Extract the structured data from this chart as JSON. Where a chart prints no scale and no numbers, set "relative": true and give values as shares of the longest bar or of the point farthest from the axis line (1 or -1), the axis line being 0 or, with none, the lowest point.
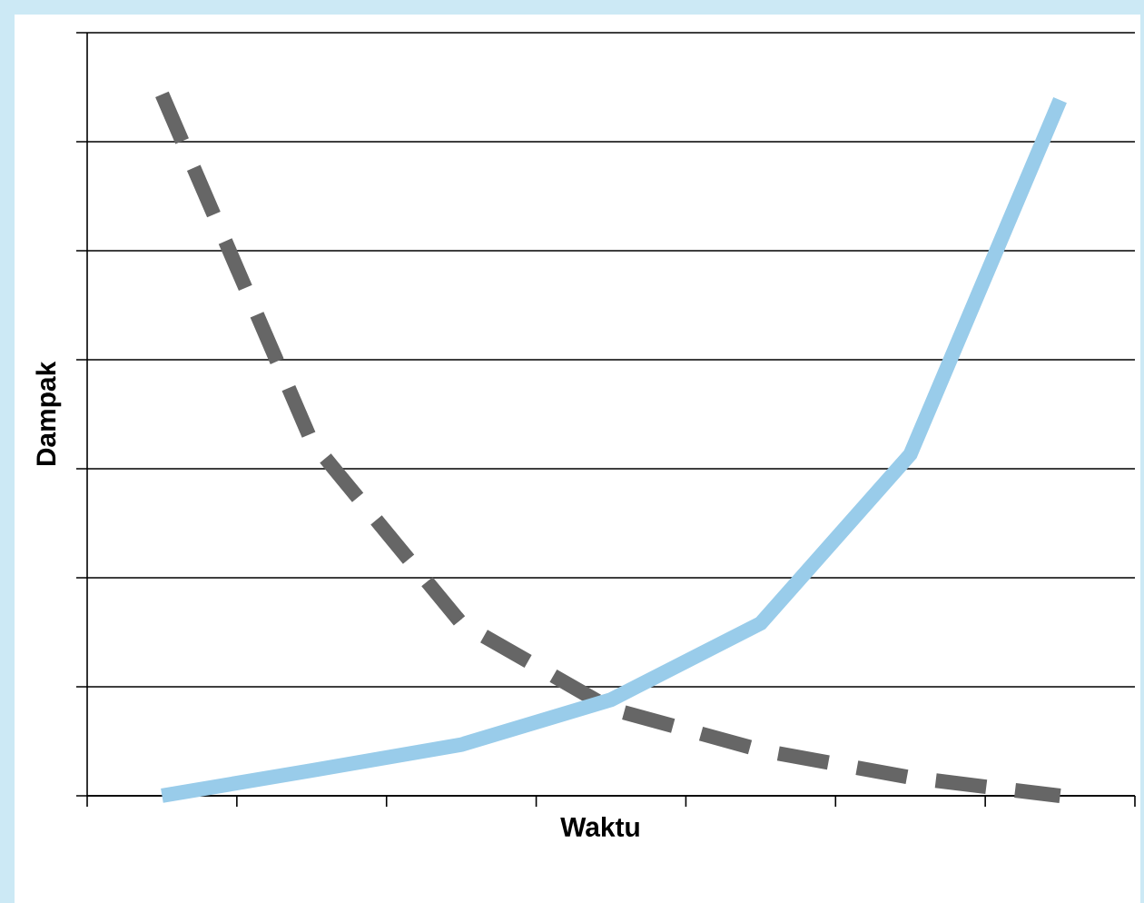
{
  "chart_data": {
    "type": "line",
    "xlabel": "Waktu",
    "ylabel": "Dampak",
    "relative": true,
    "grid": "y",
    "tick_labels": false,
    "categories": [
      null,
      null,
      null,
      null,
      null,
      null,
      null
    ],
    "series": [
      {
        "color": "#666666",
        "line_style": "dashed",
        "values": [
          1,
          0.505,
          0.246,
          0.124,
          0.065,
          0.026,
          0
        ]
      },
      {
        "color": "#99ccea",
        "line_style": "solid",
        "values": [
          0,
          0.036,
          0.073,
          0.137,
          0.246,
          0.487,
          0.992
        ]
      }
    ]
  }
}
